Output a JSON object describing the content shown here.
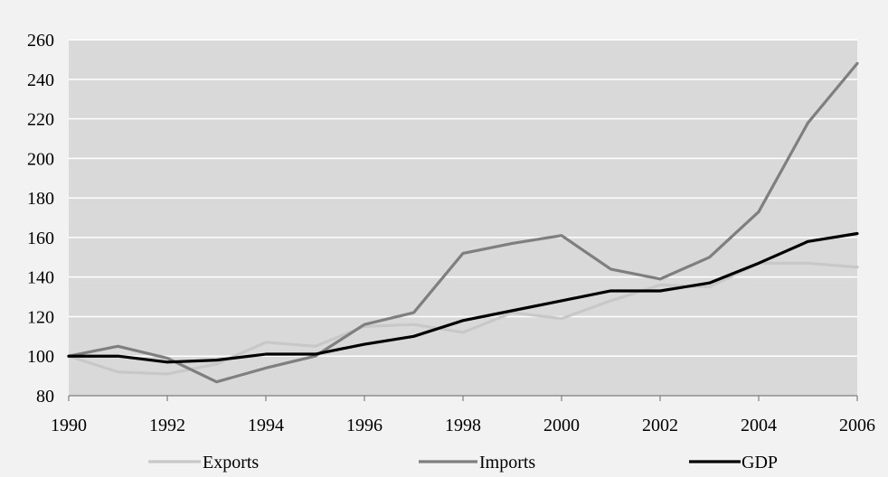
{
  "chart_data": {
    "type": "line",
    "title": "",
    "xlabel": "",
    "ylabel": "",
    "x": [
      1990,
      1991,
      1992,
      1993,
      1994,
      1995,
      1996,
      1997,
      1998,
      1999,
      2000,
      2001,
      2002,
      2003,
      2004,
      2005,
      2006
    ],
    "xlim": [
      1990,
      2006
    ],
    "ylim": [
      80,
      260
    ],
    "x_ticks": [
      "1990",
      "1992",
      "1994",
      "1996",
      "1998",
      "2000",
      "2002",
      "2004",
      "2006"
    ],
    "y_ticks": [
      "80",
      "100",
      "120",
      "140",
      "160",
      "180",
      "200",
      "220",
      "240",
      "260"
    ],
    "grid": "horizontal",
    "legend_position": "bottom",
    "series": [
      {
        "name": "Exports",
        "color": "#c8c8c8",
        "values": [
          100,
          92,
          91,
          96,
          107,
          105,
          115,
          116,
          112,
          122,
          119,
          128,
          136,
          135,
          147,
          147,
          145
        ]
      },
      {
        "name": "Imports",
        "color": "#7f7f7f",
        "values": [
          100,
          105,
          99,
          87,
          94,
          100,
          116,
          122,
          152,
          157,
          161,
          144,
          139,
          150,
          173,
          218,
          248
        ]
      },
      {
        "name": "GDP",
        "color": "#000000",
        "values": [
          100,
          100,
          97,
          98,
          101,
          101,
          106,
          110,
          118,
          123,
          128,
          133,
          133,
          137,
          147,
          158,
          162
        ]
      }
    ]
  }
}
